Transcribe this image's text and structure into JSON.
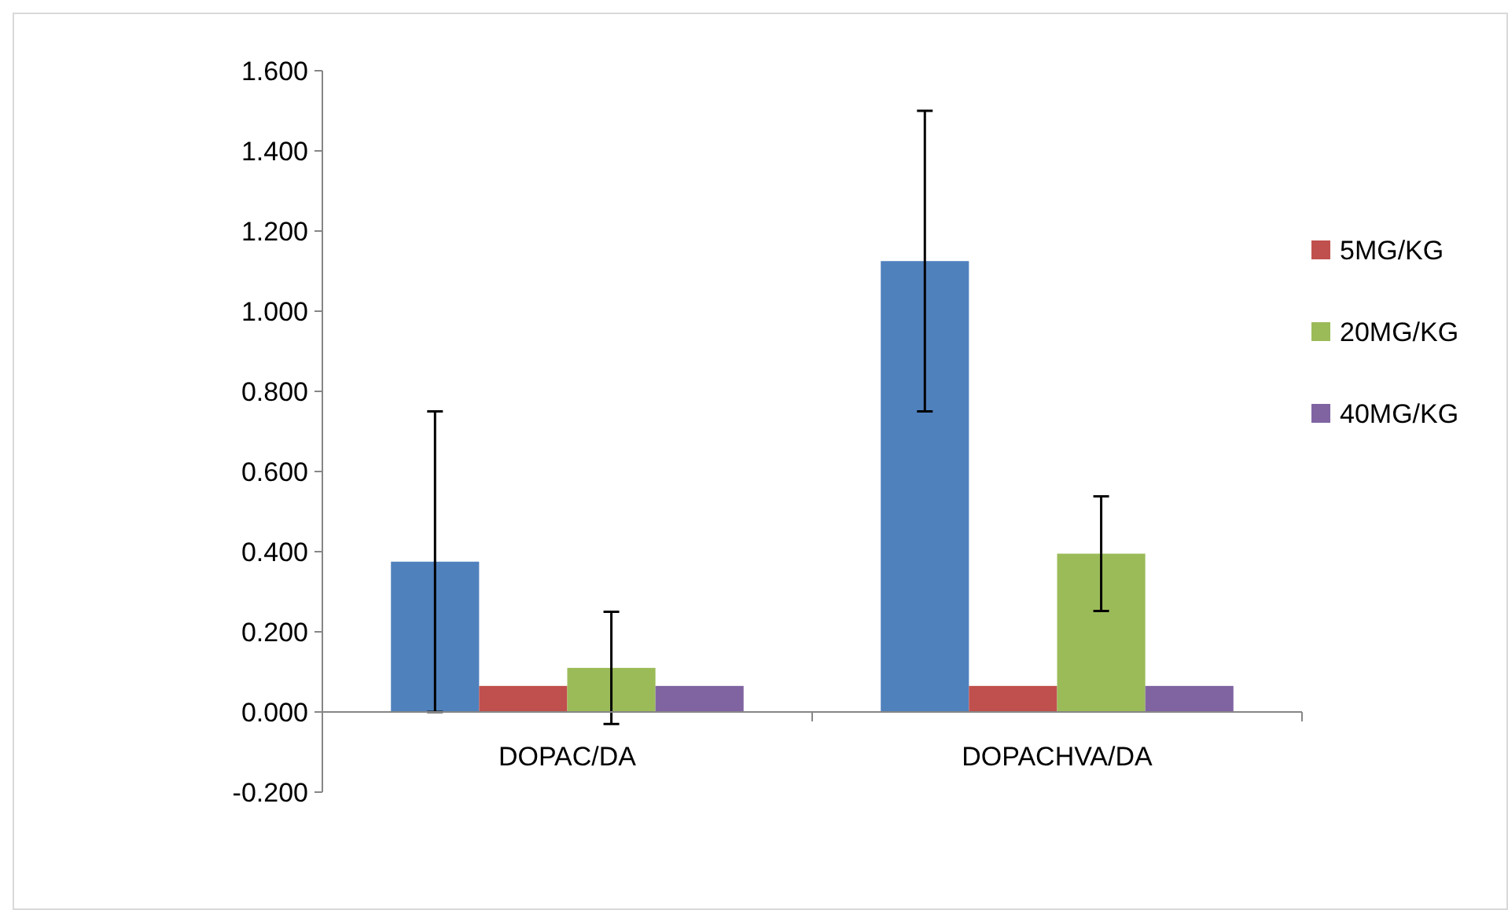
{
  "chart_data": {
    "type": "bar",
    "categories": [
      "DOPAC/DA",
      "DOPACHVA/DA"
    ],
    "series": [
      {
        "color": "#4f81bd",
        "values": [
          0.375,
          1.125
        ],
        "errors": [
          0.375,
          0.375
        ]
      },
      {
        "name": "5MG/KG",
        "color": "#c0504d",
        "values": [
          0.065,
          0.065
        ]
      },
      {
        "name": "20MG/KG",
        "color": "#9bbb59",
        "values": [
          0.11,
          0.395
        ],
        "errors": [
          0.14,
          0.143
        ]
      },
      {
        "name": "40MG/KG",
        "color": "#8064a2",
        "values": [
          0.065,
          0.065
        ]
      }
    ],
    "ylim": [
      -0.2,
      1.6
    ],
    "yticks": [
      {
        "value": -0.2,
        "label": "-0.200"
      },
      {
        "value": 0,
        "label": "0.000"
      },
      {
        "value": 0.2,
        "label": "0.200"
      },
      {
        "value": 0.4,
        "label": "0.400"
      },
      {
        "value": 0.6,
        "label": "0.600"
      },
      {
        "value": 0.8,
        "label": "0.800"
      },
      {
        "value": 1,
        "label": "1.000"
      },
      {
        "value": 1.2,
        "label": "1.200"
      },
      {
        "value": 1.4,
        "label": "1.400"
      },
      {
        "value": 1.6,
        "label": "1.600"
      }
    ],
    "grid": false,
    "legend": "right"
  }
}
